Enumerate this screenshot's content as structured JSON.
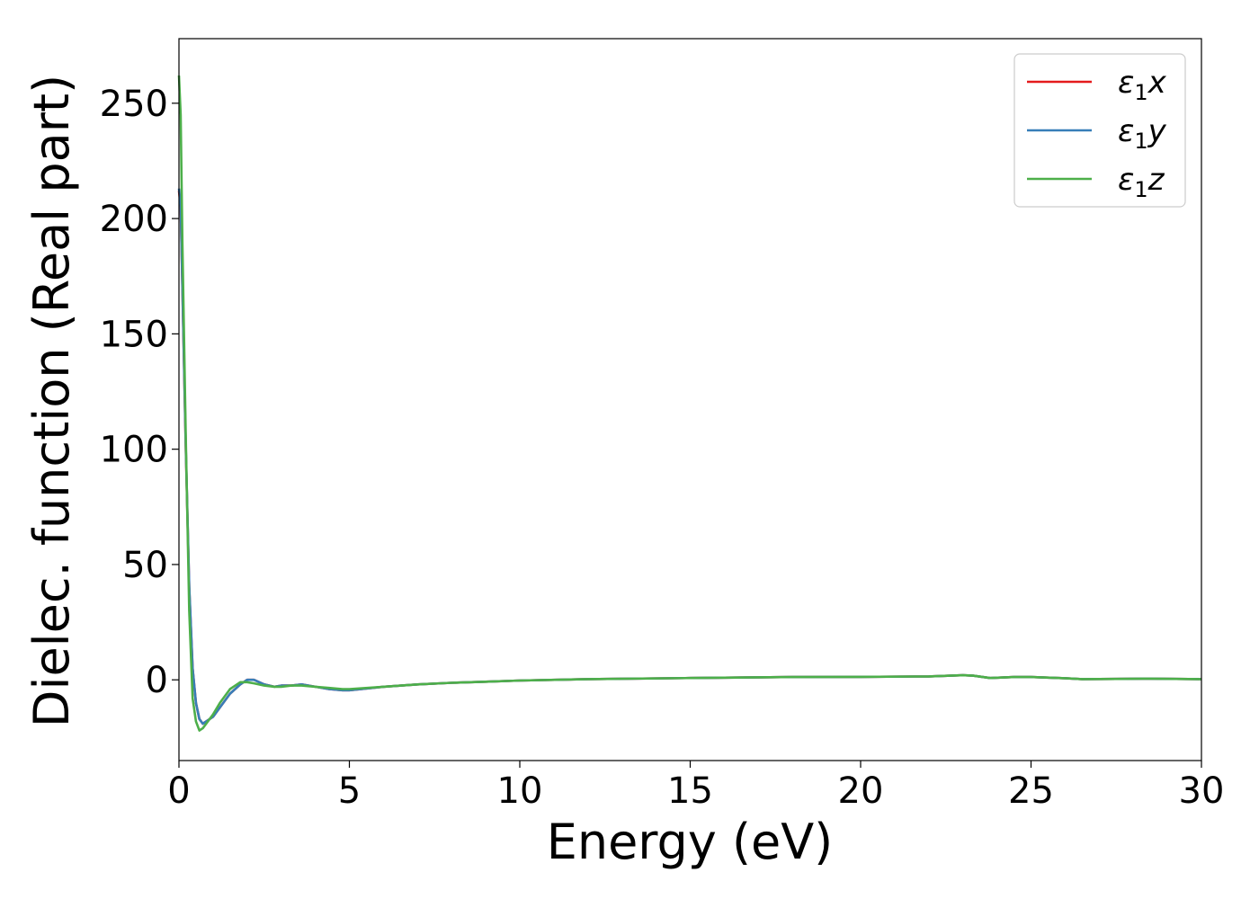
{
  "chart_data": {
    "type": "line",
    "xlabel": "Energy (eV)",
    "ylabel": "Dielec. function (Real part)",
    "xlim": [
      0,
      30
    ],
    "ylim": [
      -35,
      278
    ],
    "xticks": [
      0,
      5,
      10,
      15,
      20,
      25,
      30
    ],
    "xtick_labels": [
      "0",
      "5",
      "10",
      "15",
      "20",
      "25",
      "30"
    ],
    "yticks": [
      0,
      50,
      100,
      150,
      200,
      250
    ],
    "ytick_labels": [
      "0",
      "50",
      "100",
      "150",
      "200",
      "250"
    ],
    "grid": false,
    "legend_position": "top-right",
    "series": [
      {
        "name": "ε1x",
        "legend": {
          "sym": "ε",
          "sub": "1",
          "var": "x"
        },
        "color": "#e41a1c",
        "x": [
          0.0,
          0.05,
          0.1,
          0.2,
          0.3,
          0.4,
          0.5,
          0.6,
          0.7,
          0.8,
          1.0,
          1.2,
          1.5,
          1.8,
          2.0,
          2.2,
          2.5,
          2.8,
          3.0,
          3.3,
          3.6,
          4.0,
          4.4,
          4.8,
          5.0,
          6.0,
          7.0,
          8.0,
          9.0,
          10.0,
          12.0,
          15.0,
          18.0,
          20.0,
          22.0,
          23.0,
          23.3,
          23.8,
          24.5,
          25.0,
          26.0,
          26.5,
          27.5,
          28.5,
          30.0
        ],
        "y": [
          212,
          205,
          170,
          100,
          40,
          5,
          -10,
          -17,
          -19,
          -18,
          -16,
          -12,
          -6,
          -2,
          0,
          0,
          -2,
          -3,
          -2.5,
          -2.5,
          -2,
          -3,
          -4,
          -4.5,
          -4.5,
          -3,
          -2,
          -1.3,
          -0.8,
          -0.3,
          0.3,
          0.8,
          1.2,
          1.3,
          1.5,
          2.0,
          1.8,
          0.8,
          1.2,
          1.2,
          0.7,
          0.3,
          0.4,
          0.5,
          0.3
        ]
      },
      {
        "name": "ε1y",
        "legend": {
          "sym": "ε",
          "sub": "1",
          "var": "y"
        },
        "color": "#377eb8",
        "x": [
          0.0,
          0.05,
          0.1,
          0.2,
          0.3,
          0.4,
          0.5,
          0.6,
          0.7,
          0.8,
          1.0,
          1.2,
          1.5,
          1.8,
          2.0,
          2.2,
          2.5,
          2.8,
          3.0,
          3.3,
          3.6,
          4.0,
          4.4,
          4.8,
          5.0,
          6.0,
          7.0,
          8.0,
          9.0,
          10.0,
          12.0,
          15.0,
          18.0,
          20.0,
          22.0,
          23.0,
          23.3,
          23.8,
          24.5,
          25.0,
          26.0,
          26.5,
          27.5,
          28.5,
          30.0
        ],
        "y": [
          213,
          206,
          171,
          101,
          41,
          5,
          -10,
          -17,
          -19,
          -18,
          -16,
          -12,
          -6,
          -2,
          0,
          0,
          -2,
          -3,
          -2.5,
          -2.5,
          -2,
          -3,
          -4,
          -4.5,
          -4.5,
          -3,
          -2,
          -1.3,
          -0.8,
          -0.3,
          0.3,
          0.8,
          1.2,
          1.3,
          1.5,
          2.0,
          1.8,
          0.8,
          1.2,
          1.2,
          0.7,
          0.3,
          0.4,
          0.5,
          0.3
        ]
      },
      {
        "name": "ε1z",
        "legend": {
          "sym": "ε",
          "sub": "1",
          "var": "z"
        },
        "color": "#4daf4a",
        "x": [
          0.0,
          0.05,
          0.1,
          0.2,
          0.3,
          0.4,
          0.5,
          0.6,
          0.7,
          0.8,
          1.0,
          1.2,
          1.5,
          1.8,
          2.0,
          2.2,
          2.5,
          2.8,
          3.0,
          3.3,
          3.6,
          4.0,
          4.4,
          4.8,
          5.0,
          6.0,
          7.0,
          8.0,
          9.0,
          10.0,
          12.0,
          15.0,
          18.0,
          20.0,
          22.0,
          23.0,
          23.3,
          23.8,
          24.5,
          25.0,
          26.0,
          26.5,
          27.5,
          28.5,
          30.0
        ],
        "y": [
          262,
          245,
          190,
          105,
          30,
          -8,
          -18,
          -22,
          -21,
          -19,
          -15,
          -10,
          -4,
          -1,
          -1,
          -1.5,
          -2.5,
          -3,
          -3,
          -2.5,
          -2.5,
          -3,
          -3.5,
          -4,
          -4,
          -3,
          -2,
          -1.3,
          -0.8,
          -0.3,
          0.3,
          0.8,
          1.2,
          1.3,
          1.5,
          2.0,
          1.8,
          0.8,
          1.2,
          1.2,
          0.7,
          0.3,
          0.4,
          0.5,
          0.3
        ]
      }
    ]
  }
}
